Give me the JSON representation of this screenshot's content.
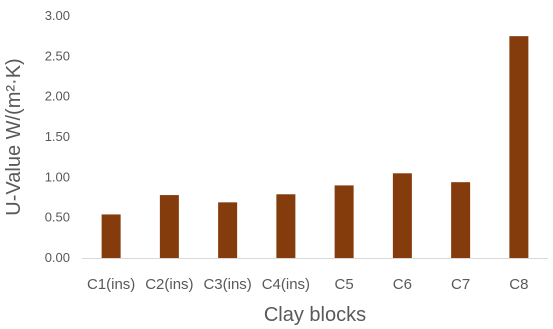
{
  "chart_data": {
    "type": "bar",
    "title": "",
    "xlabel": "Clay blocks",
    "ylabel": "U-Value W/(m²·K)",
    "categories": [
      "C1(ins)",
      "C2(ins)",
      "C3(ins)",
      "C4(ins)",
      "C5",
      "C6",
      "C7",
      "C8"
    ],
    "values": [
      0.54,
      0.78,
      0.69,
      0.79,
      0.9,
      1.05,
      0.94,
      2.75
    ],
    "ylim": [
      0,
      3
    ],
    "yticks": [
      "0.00",
      "0.50",
      "1.00",
      "1.50",
      "2.00",
      "2.50",
      "3.00"
    ],
    "grid": false,
    "legend": "none",
    "bar_color": "#843C0C"
  }
}
